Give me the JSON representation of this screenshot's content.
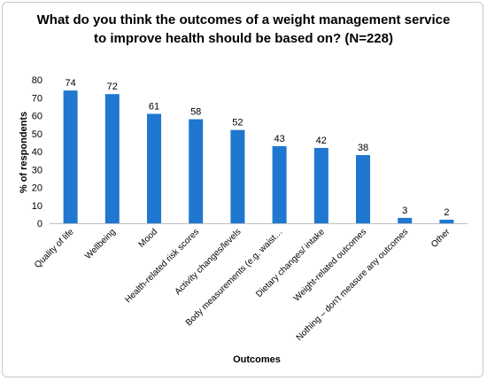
{
  "chart_data": {
    "type": "bar",
    "title": "What do you think the outcomes of a weight management service to improve health should be based on? (N=228)",
    "xlabel": "Outcomes",
    "ylabel": "% of respondents",
    "ylim": [
      0,
      80
    ],
    "yticks": [
      0,
      10,
      20,
      30,
      40,
      50,
      60,
      70,
      80
    ],
    "grid": false,
    "legend": "none",
    "bar_color": "#1f77d0",
    "categories": [
      "Quality of life",
      "Wellbeing",
      "Mood",
      "Health-related risk scores",
      "Activity changes/levels",
      "Body measurements (e.g. waist…",
      "Dietary changes/ intake",
      "Weight-related outcomes",
      "Nothing – don't measure any outcomes",
      "Other"
    ],
    "values": [
      74,
      72,
      61,
      58,
      52,
      43,
      42,
      38,
      3,
      2
    ]
  }
}
